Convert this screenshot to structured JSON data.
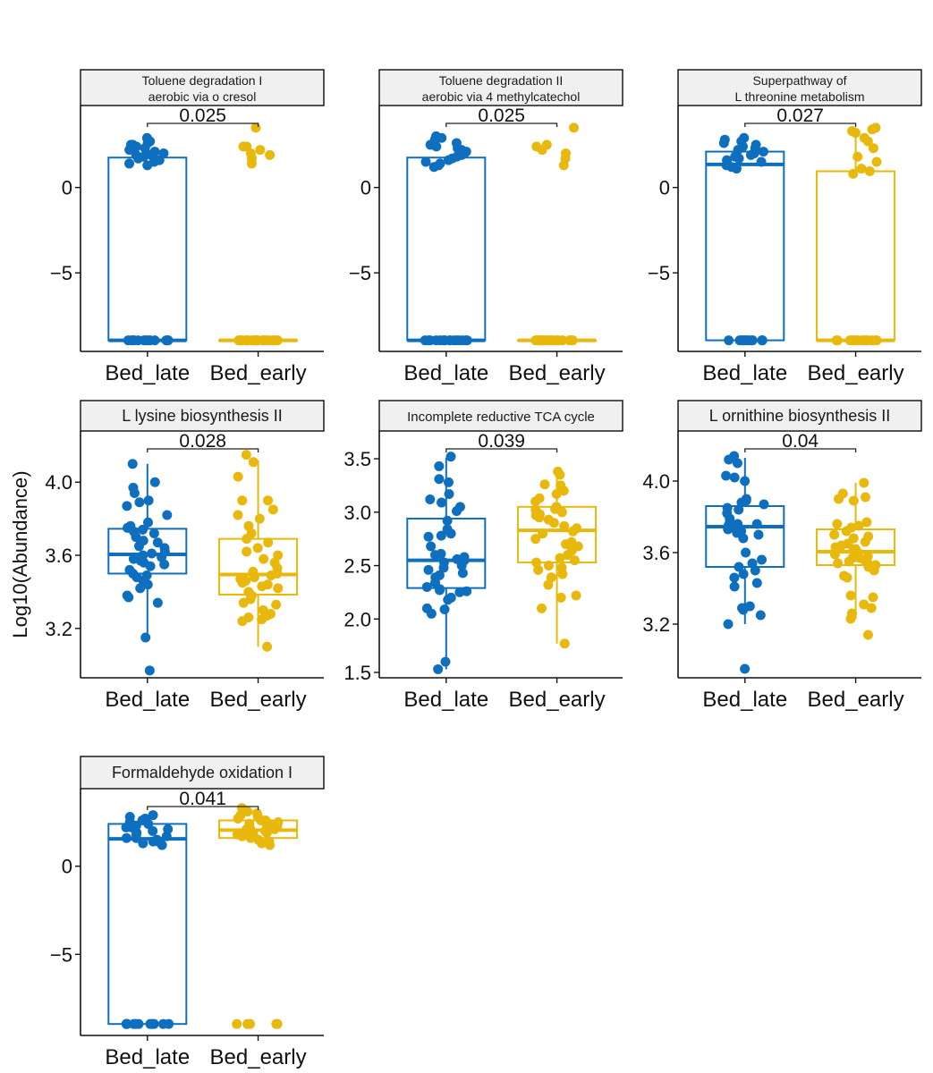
{
  "chart_data": {
    "type": "box",
    "ylabel": "Log10(Abundance)",
    "groups": [
      "Bed_late",
      "Bed_early"
    ],
    "colors": {
      "Bed_late": "#0f6fbf",
      "Bed_early": "#e8b90c"
    },
    "facets": [
      {
        "title": [
          "Toluene degradation I",
          "aerobic via o cresol"
        ],
        "p_value": "0.025",
        "ylim": [
          -9.6,
          4.8
        ],
        "yticks": [
          {
            "v": 0,
            "label": "0"
          },
          {
            "v": -5,
            "label": "−5"
          }
        ],
        "boxes": [
          {
            "group": "Bed_late",
            "q1": -8.95,
            "median": -8.95,
            "q3": 1.75,
            "whisker_low": -8.95,
            "whisker_high": 1.75,
            "points": [
              2.9,
              2.7,
              2.5,
              2.4,
              2.3,
              2.6,
              2.2,
              2.0,
              1.9,
              1.8,
              1.7,
              1.6,
              1.5,
              1.4,
              1.3,
              1.9,
              2.1,
              2.5,
              -8.95,
              -8.95,
              -8.95,
              -8.95,
              -8.95,
              -8.95,
              -8.95,
              -8.95,
              -8.95,
              -8.95,
              -8.95,
              -8.95,
              -8.95,
              -8.95,
              -8.95,
              -8.95
            ]
          },
          {
            "group": "Bed_early",
            "q1": -8.95,
            "median": -8.95,
            "q3": -8.95,
            "whisker_low": -8.95,
            "whisker_high": -8.95,
            "points": [
              3.5,
              2.4,
              2.2,
              2.0,
              2.4,
              1.9,
              1.7,
              1.4,
              -8.95,
              -8.95,
              -8.95,
              -8.95,
              -8.95,
              -8.95,
              -8.95,
              -8.95,
              -8.95,
              -8.95,
              -8.95,
              -8.95,
              -8.95,
              -8.95,
              -8.95,
              -8.95,
              -8.95,
              -8.95,
              -8.95,
              -8.95,
              -8.95,
              -8.95,
              -8.95,
              -8.95,
              -8.95,
              -8.95
            ]
          }
        ]
      },
      {
        "title": [
          "Toluene degradation II",
          "aerobic via 4 methylcatechol"
        ],
        "p_value": "0.025",
        "ylim": [
          -9.6,
          4.8
        ],
        "yticks": [
          {
            "v": 0,
            "label": "0"
          },
          {
            "v": -5,
            "label": "−5"
          }
        ],
        "boxes": [
          {
            "group": "Bed_late",
            "q1": -8.95,
            "median": -8.95,
            "q3": 1.75,
            "whisker_low": -8.95,
            "whisker_high": 1.75,
            "points": [
              3.0,
              2.8,
              2.6,
              2.5,
              2.4,
              2.3,
              2.2,
              2.1,
              2.0,
              1.9,
              1.8,
              1.7,
              1.6,
              1.5,
              1.3,
              1.4,
              1.2,
              2.9,
              -8.95,
              -8.95,
              -8.95,
              -8.95,
              -8.95,
              -8.95,
              -8.95,
              -8.95,
              -8.95,
              -8.95,
              -8.95,
              -8.95,
              -8.95,
              -8.95,
              -8.95,
              -8.95
            ]
          },
          {
            "group": "Bed_early",
            "q1": -8.95,
            "median": -8.95,
            "q3": -8.95,
            "whisker_low": -8.95,
            "whisker_high": -8.95,
            "points": [
              3.5,
              2.5,
              2.4,
              2.2,
              2.0,
              1.7,
              1.3,
              -8.95,
              -8.95,
              -8.95,
              -8.95,
              -8.95,
              -8.95,
              -8.95,
              -8.95,
              -8.95,
              -8.95,
              -8.95,
              -8.95,
              -8.95,
              -8.95,
              -8.95,
              -8.95,
              -8.95,
              -8.95,
              -8.95,
              -8.95,
              -8.95,
              -8.95,
              -8.95,
              -8.95,
              -8.95,
              -8.95,
              -8.95
            ]
          }
        ]
      },
      {
        "title": [
          "Superpathway of",
          "L threonine metabolism"
        ],
        "p_value": "0.027",
        "ylim": [
          -9.6,
          4.8
        ],
        "yticks": [
          {
            "v": 0,
            "label": "0"
          },
          {
            "v": -5,
            "label": "−5"
          }
        ],
        "boxes": [
          {
            "group": "Bed_late",
            "q1": -8.95,
            "median": 1.35,
            "q3": 2.1,
            "whisker_low": -8.95,
            "whisker_high": 2.9,
            "points": [
              2.9,
              2.7,
              2.6,
              2.5,
              2.4,
              2.3,
              2.2,
              2.1,
              2.0,
              1.9,
              1.8,
              1.7,
              1.6,
              1.5,
              1.4,
              1.3,
              1.2,
              1.1,
              2.8,
              -8.95,
              -8.95,
              -8.95,
              -8.95,
              -8.95,
              -8.95,
              -8.95,
              -8.95,
              -8.95,
              -8.95,
              -8.95,
              -8.95,
              -8.95,
              -8.95
            ]
          },
          {
            "group": "Bed_early",
            "q1": -8.95,
            "median": -8.95,
            "q3": 0.95,
            "whisker_low": -8.95,
            "whisker_high": 3.5,
            "points": [
              3.5,
              3.4,
              3.3,
              3.2,
              2.9,
              2.7,
              2.3,
              1.8,
              1.5,
              1.1,
              0.95,
              0.8,
              -8.95,
              -8.95,
              -8.95,
              -8.95,
              -8.95,
              -8.95,
              -8.95,
              -8.95,
              -8.95,
              -8.95,
              -8.95,
              -8.95,
              -8.95,
              -8.95,
              -8.95,
              -8.95
            ]
          }
        ]
      },
      {
        "title": [
          "L lysine biosynthesis II"
        ],
        "p_value": "0.028",
        "ylim": [
          2.93,
          4.28
        ],
        "yticks": [
          {
            "v": 4.0,
            "label": "4.0"
          },
          {
            "v": 3.6,
            "label": "3.6"
          },
          {
            "v": 3.2,
            "label": "3.2"
          }
        ],
        "boxes": [
          {
            "group": "Bed_late",
            "q1": 3.5,
            "median": 3.605,
            "q3": 3.745,
            "whisker_low": 3.15,
            "whisker_high": 4.1,
            "points": [
              4.1,
              4.0,
              3.97,
              3.94,
              3.9,
              3.89,
              3.87,
              3.82,
              3.78,
              3.75,
              3.74,
              3.73,
              3.72,
              3.7,
              3.67,
              3.65,
              3.62,
              3.61,
              3.6,
              3.59,
              3.58,
              3.57,
              3.56,
              3.55,
              3.54,
              3.52,
              3.5,
              3.49,
              3.48,
              3.46,
              3.44,
              3.42,
              3.38,
              3.37,
              3.34,
              3.15,
              2.97,
              3.64,
              3.76,
              3.68
            ]
          },
          {
            "group": "Bed_early",
            "q1": 3.385,
            "median": 3.495,
            "q3": 3.69,
            "whisker_low": 3.1,
            "whisker_high": 4.12,
            "points": [
              4.15,
              4.11,
              4.03,
              3.9,
              3.9,
              3.85,
              3.82,
              3.8,
              3.76,
              3.72,
              3.69,
              3.67,
              3.64,
              3.62,
              3.58,
              3.56,
              3.53,
              3.51,
              3.5,
              3.49,
              3.48,
              3.47,
              3.46,
              3.45,
              3.44,
              3.43,
              3.42,
              3.4,
              3.38,
              3.36,
              3.34,
              3.33,
              3.3,
              3.28,
              3.27,
              3.26,
              3.25,
              3.24,
              3.1,
              3.6
            ]
          }
        ]
      },
      {
        "title": [
          "Incomplete reductive TCA cycle"
        ],
        "p_value": "0.039",
        "ylim": [
          1.45,
          3.76
        ],
        "yticks": [
          {
            "v": 3.5,
            "label": "3.5"
          },
          {
            "v": 3.0,
            "label": "3.0"
          },
          {
            "v": 2.5,
            "label": "2.5"
          },
          {
            "v": 2.0,
            "label": "2.0"
          },
          {
            "v": 1.5,
            "label": "1.5"
          }
        ],
        "boxes": [
          {
            "group": "Bed_late",
            "q1": 2.29,
            "median": 2.55,
            "q3": 2.94,
            "whisker_low": 1.53,
            "whisker_high": 3.51,
            "points": [
              3.52,
              3.43,
              3.31,
              3.28,
              3.17,
              3.12,
              3.09,
              3.05,
              3.01,
              2.92,
              2.84,
              2.8,
              2.78,
              2.77,
              2.68,
              2.61,
              2.58,
              2.56,
              2.55,
              2.53,
              2.5,
              2.48,
              2.46,
              2.43,
              2.41,
              2.39,
              2.34,
              2.3,
              2.28,
              2.27,
              2.26,
              2.25,
              2.2,
              2.18,
              2.1,
              2.09,
              2.05,
              1.6,
              1.53,
              2.6
            ]
          },
          {
            "group": "Bed_early",
            "q1": 2.53,
            "median": 2.83,
            "q3": 3.05,
            "whisker_low": 1.77,
            "whisker_high": 3.37,
            "points": [
              3.38,
              3.35,
              3.26,
              3.25,
              3.2,
              3.17,
              3.13,
              3.1,
              3.05,
              3.03,
              3.02,
              3.0,
              2.98,
              2.95,
              2.93,
              2.9,
              2.87,
              2.85,
              2.82,
              2.8,
              2.75,
              2.72,
              2.68,
              2.64,
              2.6,
              2.57,
              2.55,
              2.53,
              2.5,
              2.48,
              2.46,
              2.42,
              2.39,
              2.32,
              2.22,
              2.2,
              2.1,
              1.77,
              2.7,
              2.97
            ]
          }
        ]
      },
      {
        "title": [
          "L ornithine biosynthesis II"
        ],
        "p_value": "0.04",
        "ylim": [
          2.9,
          4.28
        ],
        "yticks": [
          {
            "v": 4.0,
            "label": "4.0"
          },
          {
            "v": 3.6,
            "label": "3.6"
          },
          {
            "v": 3.2,
            "label": "3.2"
          }
        ],
        "boxes": [
          {
            "group": "Bed_late",
            "q1": 3.52,
            "median": 3.745,
            "q3": 3.86,
            "whisker_low": 3.2,
            "whisker_high": 4.13,
            "points": [
              4.14,
              4.12,
              4.1,
              4.03,
              4.02,
              4.0,
              3.9,
              3.89,
              3.87,
              3.85,
              3.84,
              3.82,
              3.79,
              3.77,
              3.76,
              3.75,
              3.74,
              3.73,
              3.72,
              3.71,
              3.7,
              3.68,
              3.6,
              3.56,
              3.54,
              3.52,
              3.5,
              3.48,
              3.46,
              3.43,
              3.41,
              3.3,
              3.29,
              3.28,
              3.25,
              3.2,
              2.95,
              3.88,
              3.74,
              3.76
            ]
          },
          {
            "group": "Bed_early",
            "q1": 3.53,
            "median": 3.605,
            "q3": 3.73,
            "whisker_low": 3.23,
            "whisker_high": 3.99,
            "points": [
              3.99,
              3.93,
              3.91,
              3.9,
              3.89,
              3.77,
              3.76,
              3.74,
              3.72,
              3.7,
              3.68,
              3.66,
              3.65,
              3.63,
              3.62,
              3.61,
              3.6,
              3.59,
              3.58,
              3.57,
              3.56,
              3.55,
              3.54,
              3.53,
              3.52,
              3.5,
              3.47,
              3.46,
              3.36,
              3.35,
              3.31,
              3.29,
              3.26,
              3.23,
              3.14,
              3.64,
              3.69,
              3.75,
              3.57,
              3.55
            ]
          }
        ]
      },
      {
        "title": [
          "Formaldehyde oxidation I"
        ],
        "p_value": "0.041",
        "ylim": [
          -9.6,
          4.4
        ],
        "yticks": [
          {
            "v": 0,
            "label": "0"
          },
          {
            "v": -5,
            "label": "−5"
          }
        ],
        "boxes": [
          {
            "group": "Bed_late",
            "q1": -8.95,
            "median": 1.55,
            "q3": 2.4,
            "whisker_low": -8.95,
            "whisker_high": 2.9,
            "points": [
              2.9,
              2.8,
              2.7,
              2.6,
              2.5,
              2.4,
              2.3,
              2.2,
              2.1,
              2.0,
              1.9,
              1.8,
              1.7,
              1.6,
              1.5,
              1.4,
              1.3,
              1.2,
              2.5,
              2.2,
              1.6,
              1.4,
              -8.95,
              -8.95,
              -8.95,
              -8.95,
              -8.95,
              -8.95,
              -8.95,
              -8.95,
              -8.95,
              -8.95,
              -8.95,
              -8.95
            ]
          },
          {
            "group": "Bed_early",
            "q1": 1.6,
            "median": 2.05,
            "q3": 2.6,
            "whisker_low": 1.2,
            "whisker_high": 3.2,
            "points": [
              3.3,
              3.1,
              3.0,
              2.9,
              2.8,
              2.7,
              2.6,
              2.5,
              2.4,
              2.3,
              2.2,
              2.1,
              2.0,
              1.9,
              1.8,
              1.7,
              1.6,
              1.5,
              1.4,
              1.3,
              1.2,
              2.5,
              2.3,
              2.1,
              1.9,
              2.6,
              2.4,
              2.2,
              2.0,
              1.8,
              -8.95,
              -8.95,
              -8.95,
              -8.95,
              -8.95
            ]
          }
        ]
      }
    ]
  }
}
